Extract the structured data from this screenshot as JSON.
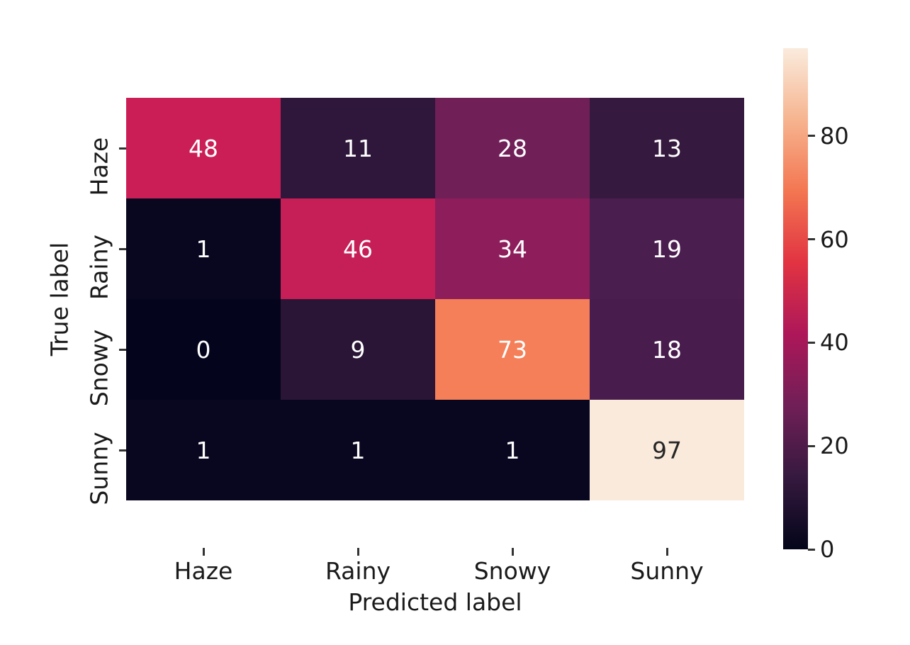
{
  "chart_data": {
    "type": "heatmap",
    "title": "",
    "xlabel": "Predicted label",
    "ylabel": "True label",
    "x_categories": [
      "Haze",
      "Rainy",
      "Snowy",
      "Sunny"
    ],
    "y_categories": [
      "Haze",
      "Rainy",
      "Snowy",
      "Sunny"
    ],
    "values": [
      [
        48,
        11,
        28,
        13
      ],
      [
        1,
        46,
        34,
        19
      ],
      [
        0,
        9,
        73,
        18
      ],
      [
        1,
        1,
        1,
        97
      ]
    ],
    "cell_colors": [
      [
        "#CB1E56",
        "#2F173B",
        "#701F57",
        "#36193F"
      ],
      [
        "#090720",
        "#C61E56",
        "#8E1D5B",
        "#4B1E50"
      ],
      [
        "#04051C",
        "#2B1537",
        "#F47F58",
        "#481C4D"
      ],
      [
        "#090720",
        "#090720",
        "#090720",
        "#FAEADC"
      ]
    ],
    "annot_colors": [
      [
        "#ffffff",
        "#ffffff",
        "#ffffff",
        "#ffffff"
      ],
      [
        "#ffffff",
        "#ffffff",
        "#ffffff",
        "#ffffff"
      ],
      [
        "#ffffff",
        "#ffffff",
        "#ffffff",
        "#ffffff"
      ],
      [
        "#ffffff",
        "#ffffff",
        "#ffffff",
        "#262626"
      ]
    ],
    "colorbar": {
      "min": 0,
      "max": 97,
      "ticks": [
        0,
        20,
        40,
        60,
        80
      ],
      "colormap_name": "rocket",
      "gradient_stops": [
        {
          "pos": 0,
          "color": "#03051A"
        },
        {
          "pos": 14.3,
          "color": "#35193E"
        },
        {
          "pos": 28.6,
          "color": "#701F57"
        },
        {
          "pos": 42.9,
          "color": "#AD1759"
        },
        {
          "pos": 57.1,
          "color": "#E13342"
        },
        {
          "pos": 71.4,
          "color": "#F37651"
        },
        {
          "pos": 85.7,
          "color": "#F6B48F"
        },
        {
          "pos": 100,
          "color": "#FAEBDD"
        }
      ]
    },
    "legend": null,
    "grid": false
  }
}
